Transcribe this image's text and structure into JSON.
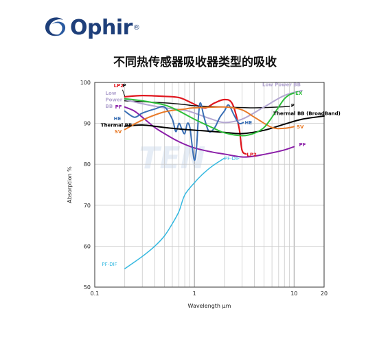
{
  "brand": {
    "name": "Ophir",
    "reg": "®"
  },
  "title": "不同热传感器吸收器类型的吸收",
  "watermark": "TEN",
  "colors": {
    "brand": "#1e3f7a",
    "LP2": "#e0161e",
    "P": "#111111",
    "LowPowerBB": "#b3a6d1",
    "PF": "#8b1fa8",
    "HE": "#3a6fb5",
    "ThermalBB": "#000000",
    "SV": "#e87a28",
    "EX": "#2ebf3a",
    "PFDIF": "#33b8e0"
  },
  "chart_data": {
    "type": "line",
    "xlabel": "Wavelength μm",
    "ylabel": "Absorption %",
    "xscale": "log",
    "xlim": [
      0.1,
      20
    ],
    "ylim": [
      50,
      100
    ],
    "xticks": [
      0.1,
      1,
      10,
      20
    ],
    "xtick_labels": [
      "0.1",
      "1",
      "10",
      "20"
    ],
    "yticks": [
      50,
      60,
      70,
      80,
      90,
      100
    ],
    "ytick_labels": [
      "50",
      "60",
      "70",
      "80",
      "90",
      "100"
    ],
    "grid": true,
    "series": [
      {
        "name": "LP2",
        "color_key": "LP2",
        "width": 2.2,
        "x": [
          0.2,
          0.3,
          0.5,
          0.7,
          0.9,
          1.1,
          1.3,
          1.6,
          2.0,
          2.4,
          2.8,
          3.0,
          3.3
        ],
        "y": [
          96.5,
          96.8,
          96.6,
          96.3,
          95.2,
          94.2,
          93.8,
          95.0,
          95.8,
          94.8,
          89.0,
          83.5,
          82.5
        ]
      },
      {
        "name": "P",
        "color_key": "P",
        "width": 1.5,
        "x": [
          0.2,
          0.3,
          0.5,
          0.8,
          1.0,
          2.0,
          4.0,
          7.0,
          9.0
        ],
        "y": [
          95.5,
          95.3,
          95.0,
          94.6,
          94.3,
          94.0,
          93.8,
          94.0,
          94.2
        ]
      },
      {
        "name": "Low Power BB",
        "color_key": "LowPowerBB",
        "width": 2.0,
        "x": [
          0.2,
          0.3,
          0.5,
          0.8,
          1.0,
          1.5,
          2.0,
          3.0,
          5.0,
          8.0,
          12.0
        ],
        "y": [
          95.8,
          94.8,
          93.8,
          93.2,
          92.5,
          91.0,
          90.2,
          91.0,
          94.0,
          96.8,
          98.0
        ]
      },
      {
        "name": "PF",
        "color_key": "PF",
        "width": 2.0,
        "x": [
          0.2,
          0.25,
          0.3,
          0.4,
          0.5,
          0.7,
          1.0,
          1.5,
          2.0,
          3.0,
          4.0,
          6.0,
          8.0,
          10.0
        ],
        "y": [
          94.0,
          93.0,
          91.5,
          89.0,
          87.5,
          85.5,
          84.0,
          83.0,
          82.5,
          81.8,
          82.0,
          82.8,
          83.5,
          84.3
        ]
      },
      {
        "name": "HE",
        "color_key": "HE",
        "width": 2.0,
        "x": [
          0.2,
          0.25,
          0.3,
          0.4,
          0.5,
          0.6,
          0.65,
          0.7,
          0.75,
          0.8,
          0.85,
          0.9,
          0.95,
          1.0,
          1.05,
          1.1,
          1.15,
          1.25,
          1.4,
          1.6,
          1.8,
          2.0,
          2.2,
          2.5,
          2.8,
          3.1
        ],
        "y": [
          93.0,
          91.5,
          92.5,
          93.5,
          94.0,
          91.0,
          88.0,
          90.0,
          88.5,
          87.5,
          90.0,
          89.0,
          84.5,
          81.0,
          84.0,
          92.0,
          95.0,
          91.5,
          88.0,
          89.0,
          91.5,
          93.0,
          94.5,
          92.0,
          90.0,
          90.2
        ]
      },
      {
        "name": "Thermal BB (BroadBand)",
        "color_key": "ThermalBB",
        "width": 2.0,
        "x": [
          0.2,
          0.3,
          0.5,
          0.8,
          1.2,
          2.0,
          3.0,
          5.0,
          8.0,
          12.0,
          20.0
        ],
        "y": [
          89.3,
          89.6,
          89.0,
          88.5,
          88.2,
          87.8,
          87.5,
          88.3,
          89.8,
          91.0,
          91.8
        ]
      },
      {
        "name": "SV",
        "color_key": "SV",
        "width": 2.0,
        "x": [
          0.2,
          0.3,
          0.5,
          0.8,
          1.0,
          2.0,
          3.0,
          4.0,
          6.0,
          8.0,
          10.0
        ],
        "y": [
          88.5,
          90.8,
          92.8,
          93.5,
          93.8,
          94.0,
          93.3,
          91.5,
          89.0,
          88.8,
          89.2
        ]
      },
      {
        "name": "EX",
        "color_key": "EX",
        "width": 2.0,
        "x": [
          0.2,
          0.3,
          0.5,
          0.7,
          1.0,
          1.5,
          2.0,
          3.0,
          4.0,
          5.0,
          6.0,
          7.0,
          8.0,
          9.0,
          10.0
        ],
        "y": [
          96.0,
          95.5,
          94.5,
          93.0,
          91.0,
          89.0,
          87.7,
          87.0,
          87.6,
          89.0,
          91.5,
          94.0,
          96.0,
          97.0,
          97.4
        ]
      },
      {
        "name": "PF-DIF",
        "color_key": "PFDIF",
        "width": 1.5,
        "x": [
          0.2,
          0.3,
          0.4,
          0.5,
          0.6,
          0.7,
          0.8,
          1.0,
          1.2,
          1.5,
          2.0
        ],
        "y": [
          54.5,
          57.5,
          60.0,
          62.5,
          65.5,
          68.5,
          72.5,
          75.5,
          77.5,
          79.5,
          81.5
        ]
      }
    ],
    "labels": [
      {
        "text": "LP2",
        "color_key": "LP2",
        "x": 0.155,
        "y": 98.8,
        "bold": true
      },
      {
        "text": "P",
        "color_key": "P",
        "x": 0.19,
        "y": 98.8,
        "bold": true
      },
      {
        "text": "Low",
        "color_key": "LowPowerBB",
        "x": 0.128,
        "y": 97.0,
        "bold": true
      },
      {
        "text": "Power",
        "color_key": "LowPowerBB",
        "x": 0.128,
        "y": 95.4,
        "bold": true
      },
      {
        "text": "BB",
        "color_key": "LowPowerBB",
        "x": 0.128,
        "y": 93.8,
        "bold": true
      },
      {
        "text": "PF",
        "color_key": "PF",
        "x": 0.16,
        "y": 93.6,
        "bold": true
      },
      {
        "text": "HE",
        "color_key": "HE",
        "x": 0.155,
        "y": 90.8,
        "bold": true
      },
      {
        "text": "Thermal BB",
        "color_key": "ThermalBB",
        "x": 0.115,
        "y": 89.2,
        "bold": true
      },
      {
        "text": "SV",
        "color_key": "SV",
        "x": 0.158,
        "y": 87.6,
        "bold": true
      },
      {
        "text": "Low Power BB",
        "color_key": "LowPowerBB",
        "x": 4.8,
        "y": 99.1,
        "bold": true
      },
      {
        "text": "EX",
        "color_key": "EX",
        "x": 10.3,
        "y": 97.0,
        "bold": true
      },
      {
        "text": "P",
        "color_key": "P",
        "x": 9.3,
        "y": 94.0,
        "bold": true
      },
      {
        "text": "Thermal BB (BroadBand)",
        "color_key": "ThermalBB",
        "x": 6.2,
        "y": 92.0,
        "bold": true
      },
      {
        "text": "HE",
        "color_key": "HE",
        "x": 3.2,
        "y": 89.8,
        "bold": true
      },
      {
        "text": "SV",
        "color_key": "SV",
        "x": 10.6,
        "y": 88.8,
        "bold": true
      },
      {
        "text": "PF",
        "color_key": "PF",
        "x": 11.2,
        "y": 84.4,
        "bold": true
      },
      {
        "text": "LP2",
        "color_key": "LP2",
        "x": 3.35,
        "y": 82.0,
        "bold": true
      },
      {
        "text": "PF-DIF",
        "color_key": "PFDIF",
        "x": 2.0,
        "y": 81.0,
        "bold": false
      },
      {
        "text": "PF-DIF",
        "color_key": "PFDIF",
        "x": 0.118,
        "y": 55.2,
        "bold": false
      }
    ]
  }
}
